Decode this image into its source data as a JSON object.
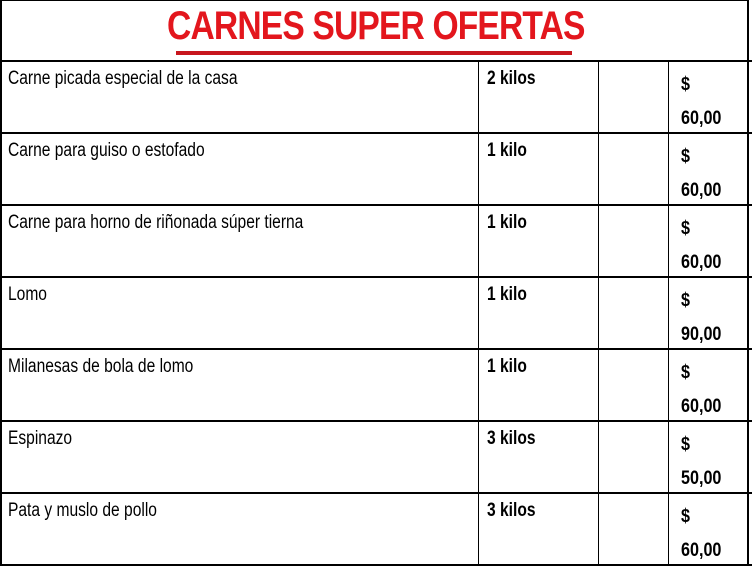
{
  "title": "CARNES SUPER OFERTAS",
  "colors": {
    "title": "#e3161d"
  },
  "rows": [
    {
      "product": "Carne picada especial de la casa",
      "quantity": "2 kilos",
      "currency": "$",
      "price": "60,00"
    },
    {
      "product": "Carne para guiso o estofado",
      "quantity": "1 kilo",
      "currency": "$",
      "price": "60,00"
    },
    {
      "product": "Carne para horno de riñonada súper tierna",
      "quantity": "1 kilo",
      "currency": "$",
      "price": "60,00"
    },
    {
      "product": "Lomo",
      "quantity": "1 kilo",
      "currency": "$",
      "price": "90,00"
    },
    {
      "product": "Milanesas de bola de lomo",
      "quantity": "1 kilo",
      "currency": "$",
      "price": "60,00"
    },
    {
      "product": "Espinazo",
      "quantity": "3 kilos",
      "currency": "$",
      "price": "50,00"
    },
    {
      "product": "Pata y muslo de pollo",
      "quantity": "3 kilos",
      "currency": "$",
      "price": "60,00"
    }
  ]
}
